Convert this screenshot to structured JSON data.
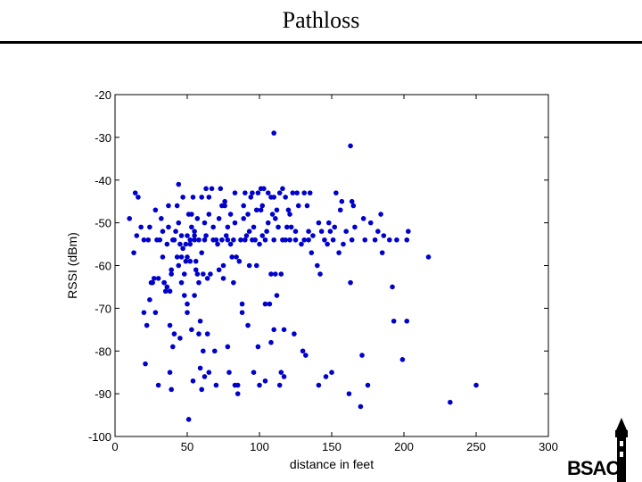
{
  "slide": {
    "title": "Pathloss"
  },
  "logo": {
    "text": "BSAC",
    "icon": "campanile-tower-icon"
  },
  "chart_data": {
    "type": "scatter",
    "xlabel": "distance in feet",
    "ylabel": "RSSI (dBm)",
    "xlim": [
      0,
      300
    ],
    "ylim": [
      -100,
      -20
    ],
    "xticks": [
      0,
      50,
      100,
      150,
      200,
      250,
      300
    ],
    "yticks": [
      -20,
      -30,
      -40,
      -50,
      -60,
      -70,
      -80,
      -90,
      -100
    ],
    "grid": false,
    "marker_color": "#0000cc",
    "points": [
      [
        10,
        -49
      ],
      [
        13,
        -57
      ],
      [
        14,
        -43
      ],
      [
        15,
        -53
      ],
      [
        16,
        -44
      ],
      [
        18,
        -51
      ],
      [
        20,
        -54
      ],
      [
        20,
        -71
      ],
      [
        21,
        -83
      ],
      [
        22,
        -74
      ],
      [
        23,
        -54
      ],
      [
        24,
        -68
      ],
      [
        24,
        -51
      ],
      [
        25,
        -64
      ],
      [
        26,
        -64
      ],
      [
        27,
        -63
      ],
      [
        28,
        -71
      ],
      [
        28,
        -47
      ],
      [
        29,
        -54
      ],
      [
        30,
        -63
      ],
      [
        30,
        -88
      ],
      [
        31,
        -54
      ],
      [
        32,
        -49
      ],
      [
        33,
        -52
      ],
      [
        33,
        -58
      ],
      [
        34,
        -64
      ],
      [
        34,
        -64
      ],
      [
        35,
        -66
      ],
      [
        36,
        -55
      ],
      [
        36,
        -65
      ],
      [
        37,
        -51
      ],
      [
        37,
        -46
      ],
      [
        38,
        -66
      ],
      [
        38,
        -74
      ],
      [
        38,
        -85
      ],
      [
        39,
        -61
      ],
      [
        39,
        -62
      ],
      [
        39,
        -89
      ],
      [
        40,
        -54
      ],
      [
        40,
        -79
      ],
      [
        41,
        -76
      ],
      [
        41,
        -54
      ],
      [
        42,
        -52
      ],
      [
        43,
        -46
      ],
      [
        43,
        -58
      ],
      [
        44,
        -41
      ],
      [
        44,
        -60
      ],
      [
        44,
        -50
      ],
      [
        45,
        -55
      ],
      [
        45,
        -77
      ],
      [
        46,
        -53
      ],
      [
        46,
        -58
      ],
      [
        46,
        -64
      ],
      [
        47,
        -56
      ],
      [
        47,
        -44
      ],
      [
        48,
        -62
      ],
      [
        48,
        -67
      ],
      [
        49,
        -59
      ],
      [
        49,
        -55
      ],
      [
        50,
        -53
      ],
      [
        50,
        -58
      ],
      [
        50,
        -69
      ],
      [
        50,
        -71
      ],
      [
        51,
        -96
      ],
      [
        51,
        -48
      ],
      [
        52,
        -55
      ],
      [
        52,
        -54
      ],
      [
        52,
        -59
      ],
      [
        53,
        -48
      ],
      [
        53,
        -51
      ],
      [
        53,
        -75
      ],
      [
        54,
        -87
      ],
      [
        54,
        -44
      ],
      [
        55,
        -52
      ],
      [
        55,
        -53
      ],
      [
        55,
        -54
      ],
      [
        55,
        -67
      ],
      [
        56,
        -59
      ],
      [
        56,
        -61
      ],
      [
        57,
        -49
      ],
      [
        57,
        -62
      ],
      [
        58,
        -54
      ],
      [
        58,
        -64
      ],
      [
        58,
        -76
      ],
      [
        59,
        -73
      ],
      [
        59,
        -84
      ],
      [
        60,
        -44
      ],
      [
        60,
        -57
      ],
      [
        60,
        -89
      ],
      [
        61,
        -80
      ],
      [
        61,
        -62
      ],
      [
        62,
        -50
      ],
      [
        62,
        -54
      ],
      [
        62,
        -86
      ],
      [
        63,
        -42
      ],
      [
        63,
        -53
      ],
      [
        64,
        -63
      ],
      [
        64,
        -76
      ],
      [
        65,
        -44
      ],
      [
        65,
        -48
      ],
      [
        65,
        -85
      ],
      [
        66,
        -62
      ],
      [
        67,
        -42
      ],
      [
        68,
        -54
      ],
      [
        68,
        -51
      ],
      [
        69,
        -80
      ],
      [
        70,
        -54
      ],
      [
        70,
        -88
      ],
      [
        71,
        -55
      ],
      [
        72,
        -49
      ],
      [
        72,
        -61
      ],
      [
        73,
        -42
      ],
      [
        74,
        -46
      ],
      [
        74,
        -54
      ],
      [
        75,
        -63
      ],
      [
        75,
        -60
      ],
      [
        76,
        -45
      ],
      [
        76,
        -46
      ],
      [
        77,
        -53
      ],
      [
        78,
        -51
      ],
      [
        78,
        -54
      ],
      [
        78,
        -79
      ],
      [
        79,
        -85
      ],
      [
        80,
        -48
      ],
      [
        80,
        -55
      ],
      [
        81,
        -58
      ],
      [
        82,
        -54
      ],
      [
        82,
        -64
      ],
      [
        83,
        -43
      ],
      [
        83,
        -50
      ],
      [
        83,
        -88
      ],
      [
        84,
        -58
      ],
      [
        85,
        -88
      ],
      [
        85,
        -90
      ],
      [
        86,
        -59
      ],
      [
        87,
        -54
      ],
      [
        88,
        -69
      ],
      [
        88,
        -71
      ],
      [
        89,
        -46
      ],
      [
        89,
        -49
      ],
      [
        90,
        -43
      ],
      [
        90,
        -54
      ],
      [
        91,
        -53
      ],
      [
        92,
        -48
      ],
      [
        92,
        -74
      ],
      [
        93,
        -52
      ],
      [
        93,
        -60
      ],
      [
        94,
        -44
      ],
      [
        95,
        -43
      ],
      [
        95,
        -54
      ],
      [
        96,
        -51
      ],
      [
        96,
        -85
      ],
      [
        97,
        -54
      ],
      [
        98,
        -47
      ],
      [
        98,
        -60
      ],
      [
        99,
        -79
      ],
      [
        99,
        -43
      ],
      [
        100,
        -55
      ],
      [
        100,
        -88
      ],
      [
        101,
        -42
      ],
      [
        101,
        -47
      ],
      [
        102,
        -46
      ],
      [
        102,
        -53
      ],
      [
        103,
        -42
      ],
      [
        104,
        -54
      ],
      [
        104,
        -69
      ],
      [
        104,
        -87
      ],
      [
        105,
        -52
      ],
      [
        106,
        -43
      ],
      [
        106,
        -50
      ],
      [
        107,
        -69
      ],
      [
        108,
        -62
      ],
      [
        108,
        -44
      ],
      [
        108,
        -78
      ],
      [
        109,
        -48
      ],
      [
        110,
        -44
      ],
      [
        110,
        -29
      ],
      [
        110,
        -54
      ],
      [
        110,
        -75
      ],
      [
        111,
        -62
      ],
      [
        111,
        -49
      ],
      [
        112,
        -47
      ],
      [
        112,
        -67
      ],
      [
        113,
        -51
      ],
      [
        114,
        -88
      ],
      [
        114,
        -43
      ],
      [
        115,
        -62
      ],
      [
        115,
        -85
      ],
      [
        116,
        -54
      ],
      [
        116,
        -42
      ],
      [
        117,
        -75
      ],
      [
        117,
        -86
      ],
      [
        118,
        -54
      ],
      [
        118,
        -44
      ],
      [
        119,
        -51
      ],
      [
        120,
        -47
      ],
      [
        121,
        -48
      ],
      [
        121,
        -54
      ],
      [
        122,
        -51
      ],
      [
        123,
        -43
      ],
      [
        124,
        -76
      ],
      [
        125,
        -52
      ],
      [
        125,
        -54
      ],
      [
        126,
        -43
      ],
      [
        127,
        -46
      ],
      [
        129,
        -55
      ],
      [
        130,
        -80
      ],
      [
        131,
        -54
      ],
      [
        131,
        -43
      ],
      [
        132,
        -81
      ],
      [
        133,
        -46
      ],
      [
        134,
        -52
      ],
      [
        134,
        -54
      ],
      [
        135,
        -43
      ],
      [
        136,
        -57
      ],
      [
        137,
        -53
      ],
      [
        140,
        -60
      ],
      [
        141,
        -88
      ],
      [
        141,
        -50
      ],
      [
        142,
        -62
      ],
      [
        143,
        -52
      ],
      [
        145,
        -54
      ],
      [
        146,
        -86
      ],
      [
        147,
        -55
      ],
      [
        148,
        -50
      ],
      [
        149,
        -52
      ],
      [
        150,
        -85
      ],
      [
        151,
        -54
      ],
      [
        152,
        -51
      ],
      [
        153,
        -43
      ],
      [
        155,
        -57
      ],
      [
        156,
        -47
      ],
      [
        157,
        -45
      ],
      [
        158,
        -55
      ],
      [
        160,
        -52
      ],
      [
        162,
        -90
      ],
      [
        163,
        -64
      ],
      [
        163,
        -32
      ],
      [
        164,
        -54
      ],
      [
        164,
        -45
      ],
      [
        165,
        -46
      ],
      [
        166,
        -51
      ],
      [
        170,
        -93
      ],
      [
        171,
        -81
      ],
      [
        172,
        -49
      ],
      [
        173,
        -54
      ],
      [
        175,
        -88
      ],
      [
        177,
        -50
      ],
      [
        180,
        -54
      ],
      [
        182,
        -52
      ],
      [
        184,
        -48
      ],
      [
        185,
        -57
      ],
      [
        186,
        -53
      ],
      [
        190,
        -54
      ],
      [
        192,
        -65
      ],
      [
        193,
        -73
      ],
      [
        195,
        -54
      ],
      [
        199,
        -82
      ],
      [
        202,
        -73
      ],
      [
        202,
        -54
      ],
      [
        203,
        -52
      ],
      [
        217,
        -58
      ],
      [
        232,
        -92
      ],
      [
        250,
        -88
      ]
    ]
  }
}
